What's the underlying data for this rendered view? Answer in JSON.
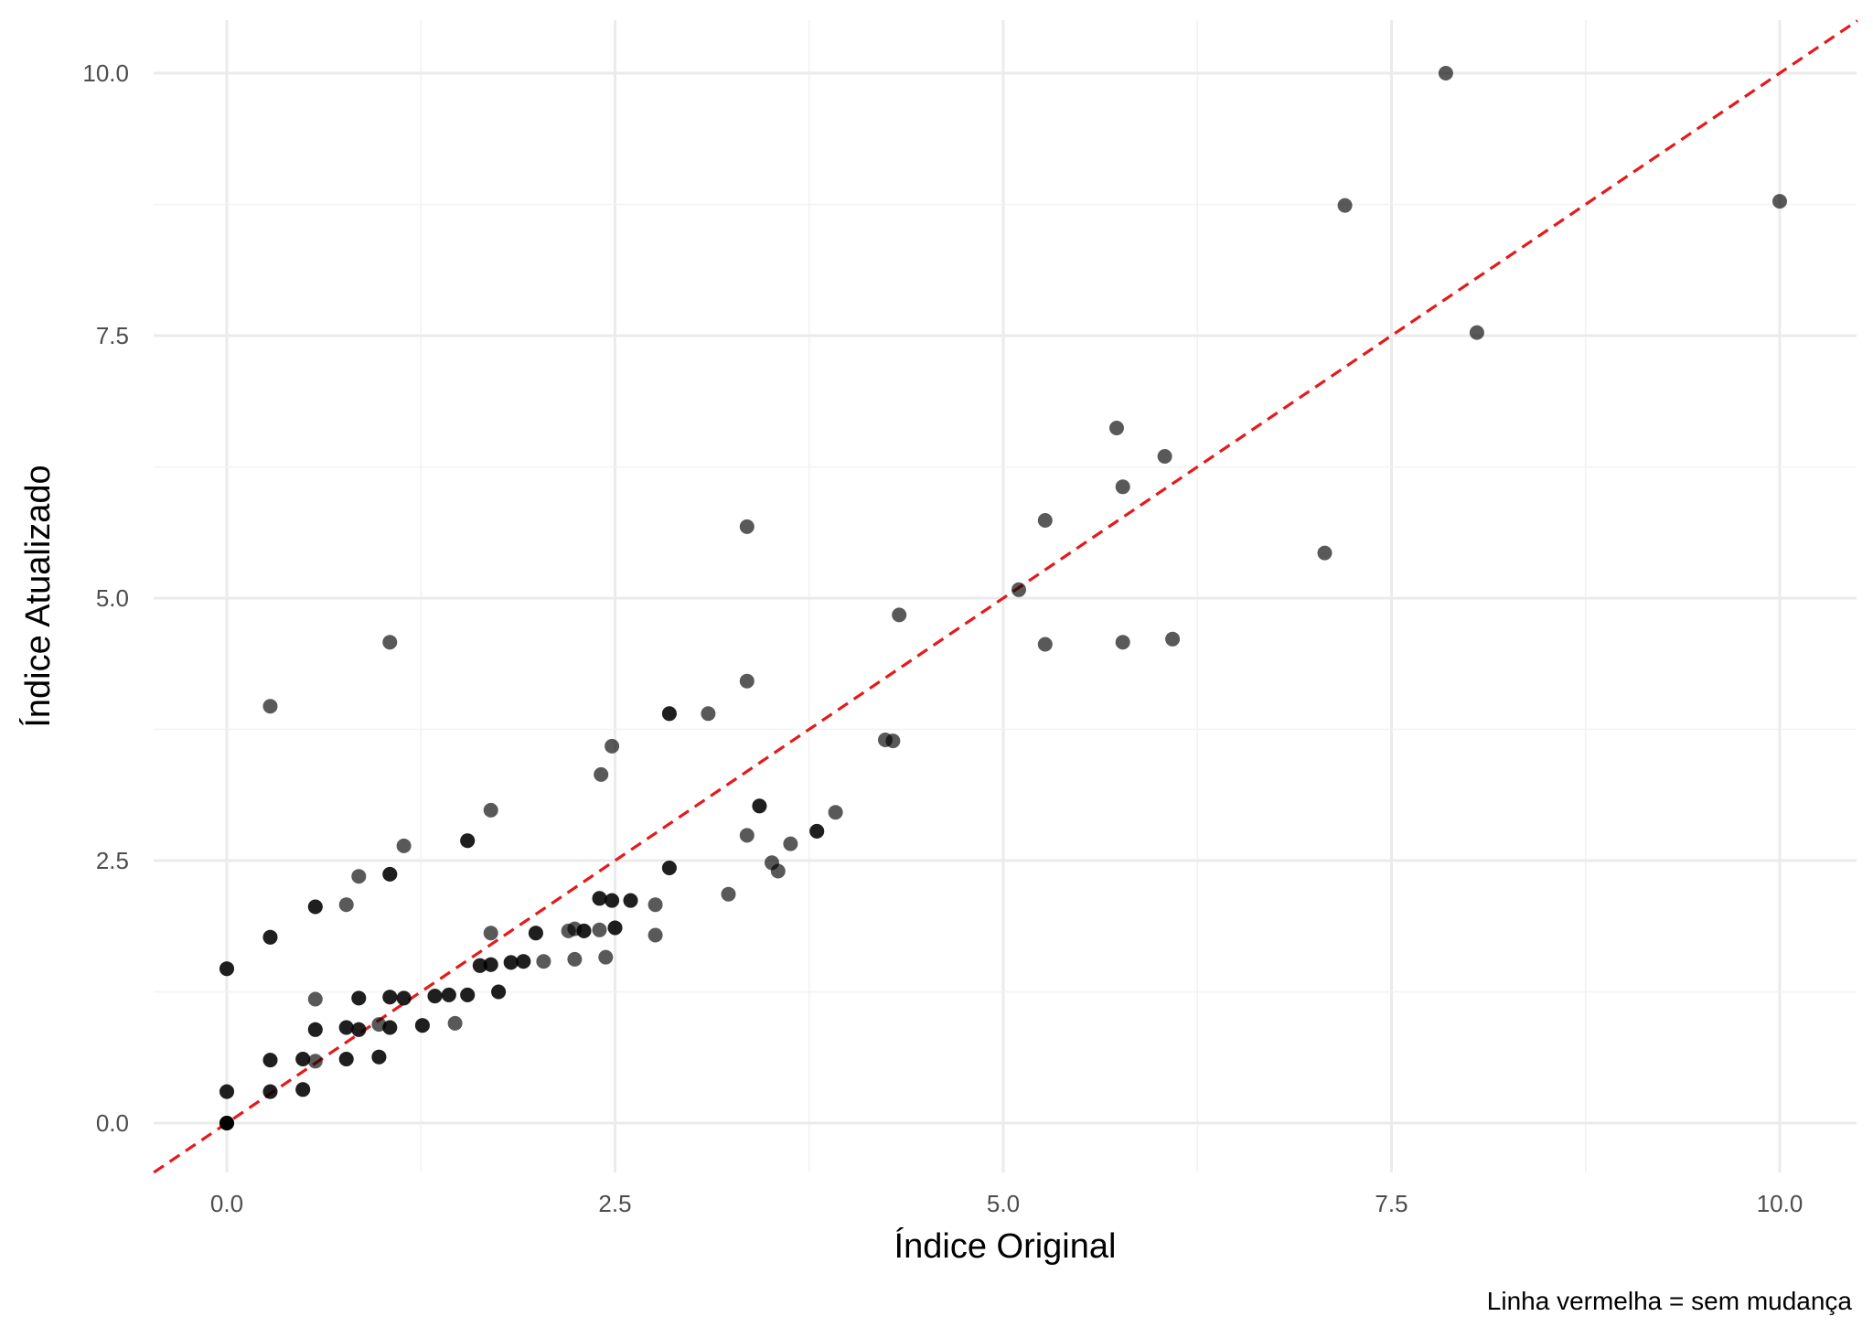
{
  "chart_data": {
    "type": "scatter",
    "title": "",
    "xlabel": "Índice Original",
    "ylabel": "Índice Atualizado",
    "caption": "Linha vermelha = sem mudança",
    "xlim": [
      -0.47,
      10.5
    ],
    "ylim": [
      -0.47,
      10.5
    ],
    "x_ticks": [
      0,
      2.5,
      5,
      7.5,
      10
    ],
    "y_ticks": [
      0,
      2.5,
      5,
      7.5,
      10
    ],
    "x_tick_labels": [
      "0.0",
      "2.5",
      "5.0",
      "7.5",
      "10.0"
    ],
    "y_tick_labels": [
      "0.0",
      "2.5",
      "5.0",
      "7.5",
      "10.0"
    ],
    "grid": true,
    "legend": "none",
    "reference_line": {
      "type": "identity",
      "slope": 1,
      "intercept": 0,
      "color": "#e41a1c",
      "style": "dashed"
    },
    "point_color": "#000000",
    "point_opacity": 0.65,
    "points": [
      [
        7.85,
        10.0
      ],
      [
        10.0,
        8.78
      ],
      [
        7.2,
        8.74
      ],
      [
        8.05,
        7.53
      ],
      [
        5.73,
        6.62
      ],
      [
        6.04,
        6.35
      ],
      [
        5.77,
        6.06
      ],
      [
        5.27,
        5.74
      ],
      [
        3.35,
        5.68
      ],
      [
        7.07,
        5.43
      ],
      [
        5.1,
        5.08
      ],
      [
        4.33,
        4.84
      ],
      [
        6.09,
        4.61
      ],
      [
        5.77,
        4.58
      ],
      [
        5.27,
        4.56
      ],
      [
        1.05,
        4.58
      ],
      [
        0.28,
        3.97
      ],
      [
        3.35,
        4.21
      ],
      [
        3.1,
        3.9
      ],
      [
        2.85,
        3.9
      ],
      [
        2.85,
        3.9
      ],
      [
        4.24,
        3.65
      ],
      [
        4.29,
        3.64
      ],
      [
        2.48,
        3.59
      ],
      [
        2.41,
        3.32
      ],
      [
        3.43,
        3.02
      ],
      [
        3.43,
        3.02
      ],
      [
        1.7,
        2.98
      ],
      [
        3.92,
        2.96
      ],
      [
        3.8,
        2.78
      ],
      [
        3.8,
        2.78
      ],
      [
        3.35,
        2.74
      ],
      [
        1.55,
        2.69
      ],
      [
        1.55,
        2.69
      ],
      [
        3.63,
        2.66
      ],
      [
        1.14,
        2.64
      ],
      [
        3.51,
        2.48
      ],
      [
        2.85,
        2.43
      ],
      [
        2.85,
        2.43
      ],
      [
        3.55,
        2.4
      ],
      [
        1.05,
        2.37
      ],
      [
        1.05,
        2.37
      ],
      [
        0.85,
        2.35
      ],
      [
        3.23,
        2.18
      ],
      [
        2.4,
        2.14
      ],
      [
        2.4,
        2.14
      ],
      [
        2.48,
        2.12
      ],
      [
        2.48,
        2.12
      ],
      [
        2.6,
        2.12
      ],
      [
        2.6,
        2.12
      ],
      [
        2.76,
        2.08
      ],
      [
        0.77,
        2.08
      ],
      [
        0.57,
        2.06
      ],
      [
        0.57,
        2.06
      ],
      [
        2.3,
        1.83
      ],
      [
        2.2,
        1.83
      ],
      [
        2.3,
        1.83
      ],
      [
        2.4,
        1.84
      ],
      [
        2.5,
        1.86
      ],
      [
        2.5,
        1.86
      ],
      [
        2.24,
        1.85
      ],
      [
        1.7,
        1.81
      ],
      [
        1.99,
        1.81
      ],
      [
        1.99,
        1.81
      ],
      [
        2.76,
        1.79
      ],
      [
        0.28,
        1.77
      ],
      [
        0.28,
        1.77
      ],
      [
        2.24,
        1.56
      ],
      [
        2.44,
        1.58
      ],
      [
        2.04,
        1.54
      ],
      [
        1.91,
        1.54
      ],
      [
        1.91,
        1.54
      ],
      [
        1.83,
        1.53
      ],
      [
        1.83,
        1.53
      ],
      [
        1.7,
        1.51
      ],
      [
        1.7,
        1.51
      ],
      [
        1.63,
        1.5
      ],
      [
        1.63,
        1.5
      ],
      [
        0.0,
        1.47
      ],
      [
        0.0,
        1.47
      ],
      [
        1.75,
        1.25
      ],
      [
        1.75,
        1.25
      ],
      [
        1.55,
        1.22
      ],
      [
        1.55,
        1.22
      ],
      [
        1.43,
        1.22
      ],
      [
        1.43,
        1.22
      ],
      [
        1.34,
        1.21
      ],
      [
        1.34,
        1.21
      ],
      [
        1.05,
        1.2
      ],
      [
        1.05,
        1.2
      ],
      [
        0.85,
        1.19
      ],
      [
        0.85,
        1.19
      ],
      [
        1.14,
        1.19
      ],
      [
        1.14,
        1.19
      ],
      [
        0.57,
        1.18
      ],
      [
        1.47,
        0.95
      ],
      [
        0.98,
        0.94
      ],
      [
        1.26,
        0.93
      ],
      [
        1.26,
        0.93
      ],
      [
        0.77,
        0.91
      ],
      [
        0.77,
        0.91
      ],
      [
        1.05,
        0.91
      ],
      [
        1.05,
        0.91
      ],
      [
        0.57,
        0.89
      ],
      [
        0.57,
        0.89
      ],
      [
        0.85,
        0.89
      ],
      [
        0.85,
        0.89
      ],
      [
        0.98,
        0.63
      ],
      [
        0.98,
        0.63
      ],
      [
        0.77,
        0.61
      ],
      [
        0.77,
        0.61
      ],
      [
        0.49,
        0.61
      ],
      [
        0.49,
        0.61
      ],
      [
        0.28,
        0.6
      ],
      [
        0.28,
        0.6
      ],
      [
        0.57,
        0.59
      ],
      [
        0.49,
        0.32
      ],
      [
        0.49,
        0.32
      ],
      [
        0.28,
        0.3
      ],
      [
        0.28,
        0.3
      ],
      [
        0.0,
        0.3
      ],
      [
        0.0,
        0.3
      ],
      [
        0.0,
        0.0
      ],
      [
        0.0,
        0.0
      ],
      [
        0.0,
        0.0
      ],
      [
        0.0,
        0.0
      ]
    ]
  }
}
